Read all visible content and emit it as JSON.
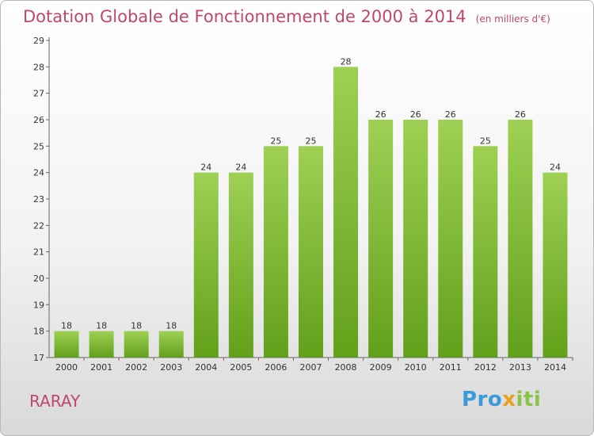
{
  "title": "Dotation Globale de Fonctionnement de 2000 à 2014",
  "subtitle": "(en milliers d'€)",
  "commune": "RARAY",
  "logo": {
    "p1": "Pro",
    "p2": "x",
    "p3": "iti"
  },
  "colors": {
    "title": "#c0476b",
    "bar_top": "#9ed054",
    "bar_bottom": "#62a01a",
    "axis": "#666666"
  },
  "chart_data": {
    "type": "bar",
    "title": "Dotation Globale de Fonctionnement de 2000 à 2014",
    "subtitle": "(en milliers d'€)",
    "xlabel": "",
    "ylabel": "",
    "categories": [
      "2000",
      "2001",
      "2002",
      "2003",
      "2004",
      "2005",
      "2006",
      "2007",
      "2008",
      "2009",
      "2010",
      "2011",
      "2012",
      "2013",
      "2014"
    ],
    "values": [
      18,
      18,
      18,
      18,
      24,
      24,
      25,
      25,
      28,
      26,
      26,
      26,
      25,
      26,
      24
    ],
    "ylim": [
      17,
      29
    ],
    "yticks": [
      17,
      18,
      19,
      20,
      21,
      22,
      23,
      24,
      25,
      26,
      27,
      28,
      29
    ],
    "grid": false,
    "legend": "none"
  }
}
